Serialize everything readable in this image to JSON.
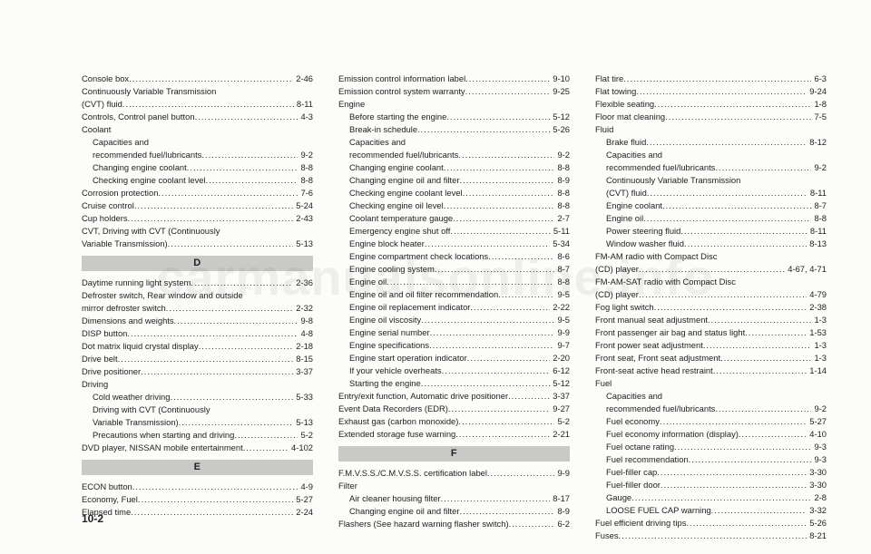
{
  "footer": "10-2",
  "watermark": "carmanualsonline.info",
  "columns": [
    {
      "items": [
        {
          "t": "e",
          "label": "Console box",
          "pg": "2-46"
        },
        {
          "t": "p",
          "label": "Continuously Variable Transmission"
        },
        {
          "t": "e",
          "label": "(CVT) fluid",
          "pg": "8-11"
        },
        {
          "t": "e",
          "label": "Controls, Control panel button",
          "pg": "4-3"
        },
        {
          "t": "p",
          "label": "Coolant"
        },
        {
          "t": "p",
          "label": "Capacities and",
          "sub": true
        },
        {
          "t": "e",
          "label": "recommended fuel/lubricants",
          "pg": "9-2",
          "sub": true
        },
        {
          "t": "e",
          "label": "Changing engine coolant",
          "pg": "8-8",
          "sub": true
        },
        {
          "t": "e",
          "label": "Checking engine coolant level",
          "pg": "8-8",
          "sub": true
        },
        {
          "t": "e",
          "label": "Corrosion protection",
          "pg": "7-6"
        },
        {
          "t": "e",
          "label": "Cruise control",
          "pg": "5-24"
        },
        {
          "t": "e",
          "label": "Cup holders",
          "pg": "2-43"
        },
        {
          "t": "p",
          "label": "CVT, Driving with CVT (Continuously"
        },
        {
          "t": "e",
          "label": "Variable Transmission)",
          "pg": "5-13"
        },
        {
          "t": "h",
          "label": "D"
        },
        {
          "t": "e",
          "label": "Daytime running light system",
          "pg": "2-36"
        },
        {
          "t": "p",
          "label": "Defroster switch, Rear window and outside"
        },
        {
          "t": "e",
          "label": "mirror defroster switch",
          "pg": "2-32"
        },
        {
          "t": "e",
          "label": "Dimensions and weights",
          "pg": "9-8"
        },
        {
          "t": "e",
          "label": "DISP button",
          "pg": "4-8"
        },
        {
          "t": "e",
          "label": "Dot matrix liquid crystal display",
          "pg": "2-18"
        },
        {
          "t": "e",
          "label": "Drive belt",
          "pg": "8-15"
        },
        {
          "t": "e",
          "label": "Drive positioner",
          "pg": "3-37"
        },
        {
          "t": "p",
          "label": "Driving"
        },
        {
          "t": "e",
          "label": "Cold weather driving",
          "pg": "5-33",
          "sub": true
        },
        {
          "t": "p",
          "label": "Driving with CVT (Continuously",
          "sub": true
        },
        {
          "t": "e",
          "label": "Variable Transmission)",
          "pg": "5-13",
          "sub": true
        },
        {
          "t": "e",
          "label": "Precautions when starting and driving",
          "pg": "5-2",
          "sub": true
        },
        {
          "t": "e",
          "label": "DVD player, NISSAN mobile entertainment",
          "pg": "4-102"
        },
        {
          "t": "h",
          "label": "E"
        },
        {
          "t": "e",
          "label": "ECON button",
          "pg": "4-9"
        },
        {
          "t": "e",
          "label": "Economy, Fuel",
          "pg": "5-27"
        },
        {
          "t": "e",
          "label": "Elapsed time",
          "pg": "2-24"
        }
      ]
    },
    {
      "items": [
        {
          "t": "e",
          "label": "Emission control information label",
          "pg": "9-10"
        },
        {
          "t": "e",
          "label": "Emission control system warranty",
          "pg": "9-25"
        },
        {
          "t": "p",
          "label": "Engine"
        },
        {
          "t": "e",
          "label": "Before starting the engine",
          "pg": "5-12",
          "sub": true
        },
        {
          "t": "e",
          "label": "Break-in schedule",
          "pg": "5-26",
          "sub": true
        },
        {
          "t": "p",
          "label": "Capacities and",
          "sub": true
        },
        {
          "t": "e",
          "label": "recommended fuel/lubricants",
          "pg": "9-2",
          "sub": true
        },
        {
          "t": "e",
          "label": "Changing engine coolant",
          "pg": "8-8",
          "sub": true
        },
        {
          "t": "e",
          "label": "Changing engine oil and filter",
          "pg": "8-9",
          "sub": true
        },
        {
          "t": "e",
          "label": "Checking engine coolant level",
          "pg": "8-8",
          "sub": true
        },
        {
          "t": "e",
          "label": "Checking engine oil level",
          "pg": "8-8",
          "sub": true
        },
        {
          "t": "e",
          "label": "Coolant temperature gauge",
          "pg": "2-7",
          "sub": true
        },
        {
          "t": "e",
          "label": "Emergency engine shut off",
          "pg": "5-11",
          "sub": true
        },
        {
          "t": "e",
          "label": "Engine block heater",
          "pg": "5-34",
          "sub": true
        },
        {
          "t": "e",
          "label": "Engine compartment check locations",
          "pg": "8-6",
          "sub": true
        },
        {
          "t": "e",
          "label": "Engine cooling system",
          "pg": "8-7",
          "sub": true
        },
        {
          "t": "e",
          "label": "Engine oil",
          "pg": "8-8",
          "sub": true
        },
        {
          "t": "e",
          "label": "Engine oil and oil filter recommendation",
          "pg": "9-5",
          "sub": true
        },
        {
          "t": "e",
          "label": "Engine oil replacement indicator",
          "pg": "2-22",
          "sub": true
        },
        {
          "t": "e",
          "label": "Engine oil viscosity",
          "pg": "9-5",
          "sub": true
        },
        {
          "t": "e",
          "label": "Engine serial number",
          "pg": "9-9",
          "sub": true
        },
        {
          "t": "e",
          "label": "Engine specifications",
          "pg": "9-7",
          "sub": true
        },
        {
          "t": "e",
          "label": "Engine start operation indicator",
          "pg": "2-20",
          "sub": true
        },
        {
          "t": "e",
          "label": "If your vehicle overheats",
          "pg": "6-12",
          "sub": true
        },
        {
          "t": "e",
          "label": "Starting the engine",
          "pg": "5-12",
          "sub": true
        },
        {
          "t": "e",
          "label": "Entry/exit function, Automatic drive positioner",
          "pg": "3-37"
        },
        {
          "t": "e",
          "label": "Event Data Recorders (EDR)",
          "pg": "9-27"
        },
        {
          "t": "e",
          "label": "Exhaust gas (carbon monoxide)",
          "pg": "5-2"
        },
        {
          "t": "e",
          "label": "Extended storage fuse warning",
          "pg": "2-21"
        },
        {
          "t": "h",
          "label": "F"
        },
        {
          "t": "e",
          "label": "F.M.V.S.S./C.M.V.S.S. certification label",
          "pg": "9-9"
        },
        {
          "t": "p",
          "label": "Filter"
        },
        {
          "t": "e",
          "label": "Air cleaner housing filter",
          "pg": "8-17",
          "sub": true
        },
        {
          "t": "e",
          "label": "Changing engine oil and filter",
          "pg": "8-9",
          "sub": true
        },
        {
          "t": "e",
          "label": "Flashers (See hazard warning flasher switch)",
          "pg": "6-2"
        }
      ]
    },
    {
      "items": [
        {
          "t": "e",
          "label": "Flat tire",
          "pg": "6-3"
        },
        {
          "t": "e",
          "label": "Flat towing",
          "pg": "9-24"
        },
        {
          "t": "e",
          "label": "Flexible seating",
          "pg": "1-8"
        },
        {
          "t": "e",
          "label": "Floor mat cleaning",
          "pg": "7-5"
        },
        {
          "t": "p",
          "label": "Fluid"
        },
        {
          "t": "e",
          "label": "Brake fluid",
          "pg": "8-12",
          "sub": true
        },
        {
          "t": "p",
          "label": "Capacities and",
          "sub": true
        },
        {
          "t": "e",
          "label": "recommended fuel/lubricants",
          "pg": "9-2",
          "sub": true
        },
        {
          "t": "p",
          "label": "Continuously Variable Transmission",
          "sub": true
        },
        {
          "t": "e",
          "label": "(CVT) fluid",
          "pg": "8-11",
          "sub": true
        },
        {
          "t": "e",
          "label": "Engine coolant",
          "pg": "8-7",
          "sub": true
        },
        {
          "t": "e",
          "label": "Engine oil",
          "pg": "8-8",
          "sub": true
        },
        {
          "t": "e",
          "label": "Power steering fluid",
          "pg": "8-11",
          "sub": true
        },
        {
          "t": "e",
          "label": "Window washer fluid",
          "pg": "8-13",
          "sub": true
        },
        {
          "t": "p",
          "label": "FM-AM radio with Compact Disc"
        },
        {
          "t": "e",
          "label": "(CD) player",
          "pg": "4-67, 4-71"
        },
        {
          "t": "p",
          "label": "FM-AM-SAT radio with Compact Disc"
        },
        {
          "t": "e",
          "label": "(CD) player",
          "pg": "4-79"
        },
        {
          "t": "e",
          "label": "Fog light switch",
          "pg": "2-38"
        },
        {
          "t": "e",
          "label": "Front manual seat adjustment",
          "pg": "1-3"
        },
        {
          "t": "e",
          "label": "Front passenger air bag and status light",
          "pg": "1-53"
        },
        {
          "t": "e",
          "label": "Front power seat adjustment",
          "pg": "1-3"
        },
        {
          "t": "e",
          "label": "Front seat, Front seat adjustment",
          "pg": "1-3"
        },
        {
          "t": "e",
          "label": "Front-seat active head restraint",
          "pg": "1-14"
        },
        {
          "t": "p",
          "label": "Fuel"
        },
        {
          "t": "p",
          "label": "Capacities and",
          "sub": true
        },
        {
          "t": "e",
          "label": "recommended fuel/lubricants",
          "pg": "9-2",
          "sub": true
        },
        {
          "t": "e",
          "label": "Fuel economy",
          "pg": "5-27",
          "sub": true
        },
        {
          "t": "e",
          "label": "Fuel economy information (display)",
          "pg": "4-10",
          "sub": true
        },
        {
          "t": "e",
          "label": "Fuel octane rating",
          "pg": "9-3",
          "sub": true
        },
        {
          "t": "e",
          "label": "Fuel recommendation",
          "pg": "9-3",
          "sub": true
        },
        {
          "t": "e",
          "label": "Fuel-filler cap",
          "pg": "3-30",
          "sub": true
        },
        {
          "t": "e",
          "label": "Fuel-filler door",
          "pg": "3-30",
          "sub": true
        },
        {
          "t": "e",
          "label": "Gauge",
          "pg": "2-8",
          "sub": true
        },
        {
          "t": "e",
          "label": "LOOSE FUEL CAP warning",
          "pg": "3-32",
          "sub": true
        },
        {
          "t": "e",
          "label": "Fuel efficient driving tips",
          "pg": "5-26"
        },
        {
          "t": "e",
          "label": "Fuses",
          "pg": "8-21"
        }
      ]
    }
  ]
}
